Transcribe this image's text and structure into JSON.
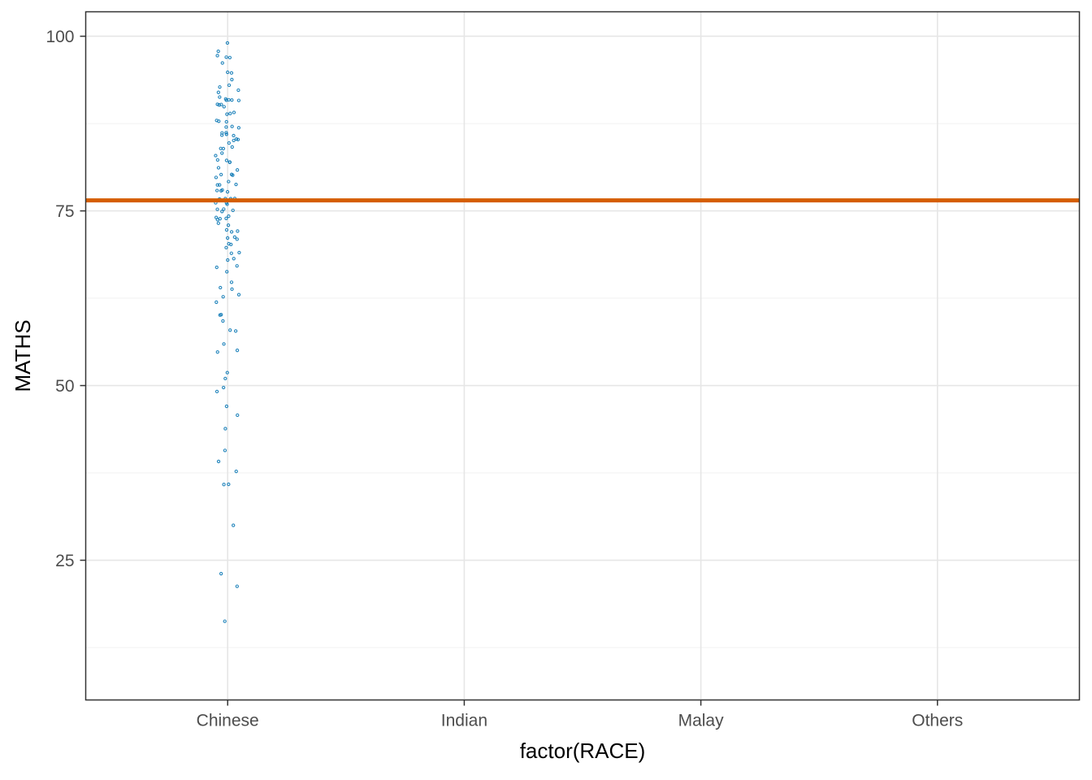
{
  "chart_data": {
    "type": "scatter",
    "title": "",
    "xlabel": "factor(RACE)",
    "ylabel": "MATHS",
    "categories": [
      "Chinese",
      "Indian",
      "Malay",
      "Others"
    ],
    "ylim": [
      5,
      103.5
    ],
    "yticks": [
      25,
      50,
      75,
      100
    ],
    "yticks_minor": [
      12.5,
      37.5,
      62.5,
      87.5
    ],
    "grid": true,
    "legend": "none",
    "hline": {
      "y": 76.5,
      "color": "#d55e00"
    },
    "point_color": "#0072b2",
    "series": [
      {
        "category": "Chinese",
        "values": [
          99,
          98,
          97,
          97,
          97,
          96,
          95,
          95,
          94,
          93,
          93,
          92,
          92,
          91,
          91,
          91,
          91,
          91,
          91,
          90,
          90,
          90,
          90,
          89,
          89,
          89,
          88,
          88,
          88,
          87,
          87,
          87,
          86,
          86,
          86,
          86,
          86,
          85,
          85,
          85,
          85,
          84,
          84,
          84,
          83,
          83,
          82,
          82,
          82,
          82,
          81,
          81,
          80,
          80,
          80,
          80,
          79,
          79,
          79,
          79,
          78,
          78,
          78,
          78,
          77,
          77,
          77,
          77,
          76,
          76,
          76,
          75,
          75,
          75,
          75,
          74,
          74,
          74,
          74,
          74,
          73,
          73,
          72,
          72,
          72,
          71,
          71,
          71,
          70,
          70,
          70,
          69,
          69,
          68,
          68,
          67,
          67,
          66,
          65,
          64,
          64,
          63,
          63,
          62,
          60,
          60,
          59,
          58,
          58,
          56,
          55,
          55,
          52,
          51,
          50,
          49,
          47,
          46,
          44,
          41,
          39,
          38,
          36,
          36,
          30,
          23,
          21,
          16
        ]
      }
    ]
  }
}
